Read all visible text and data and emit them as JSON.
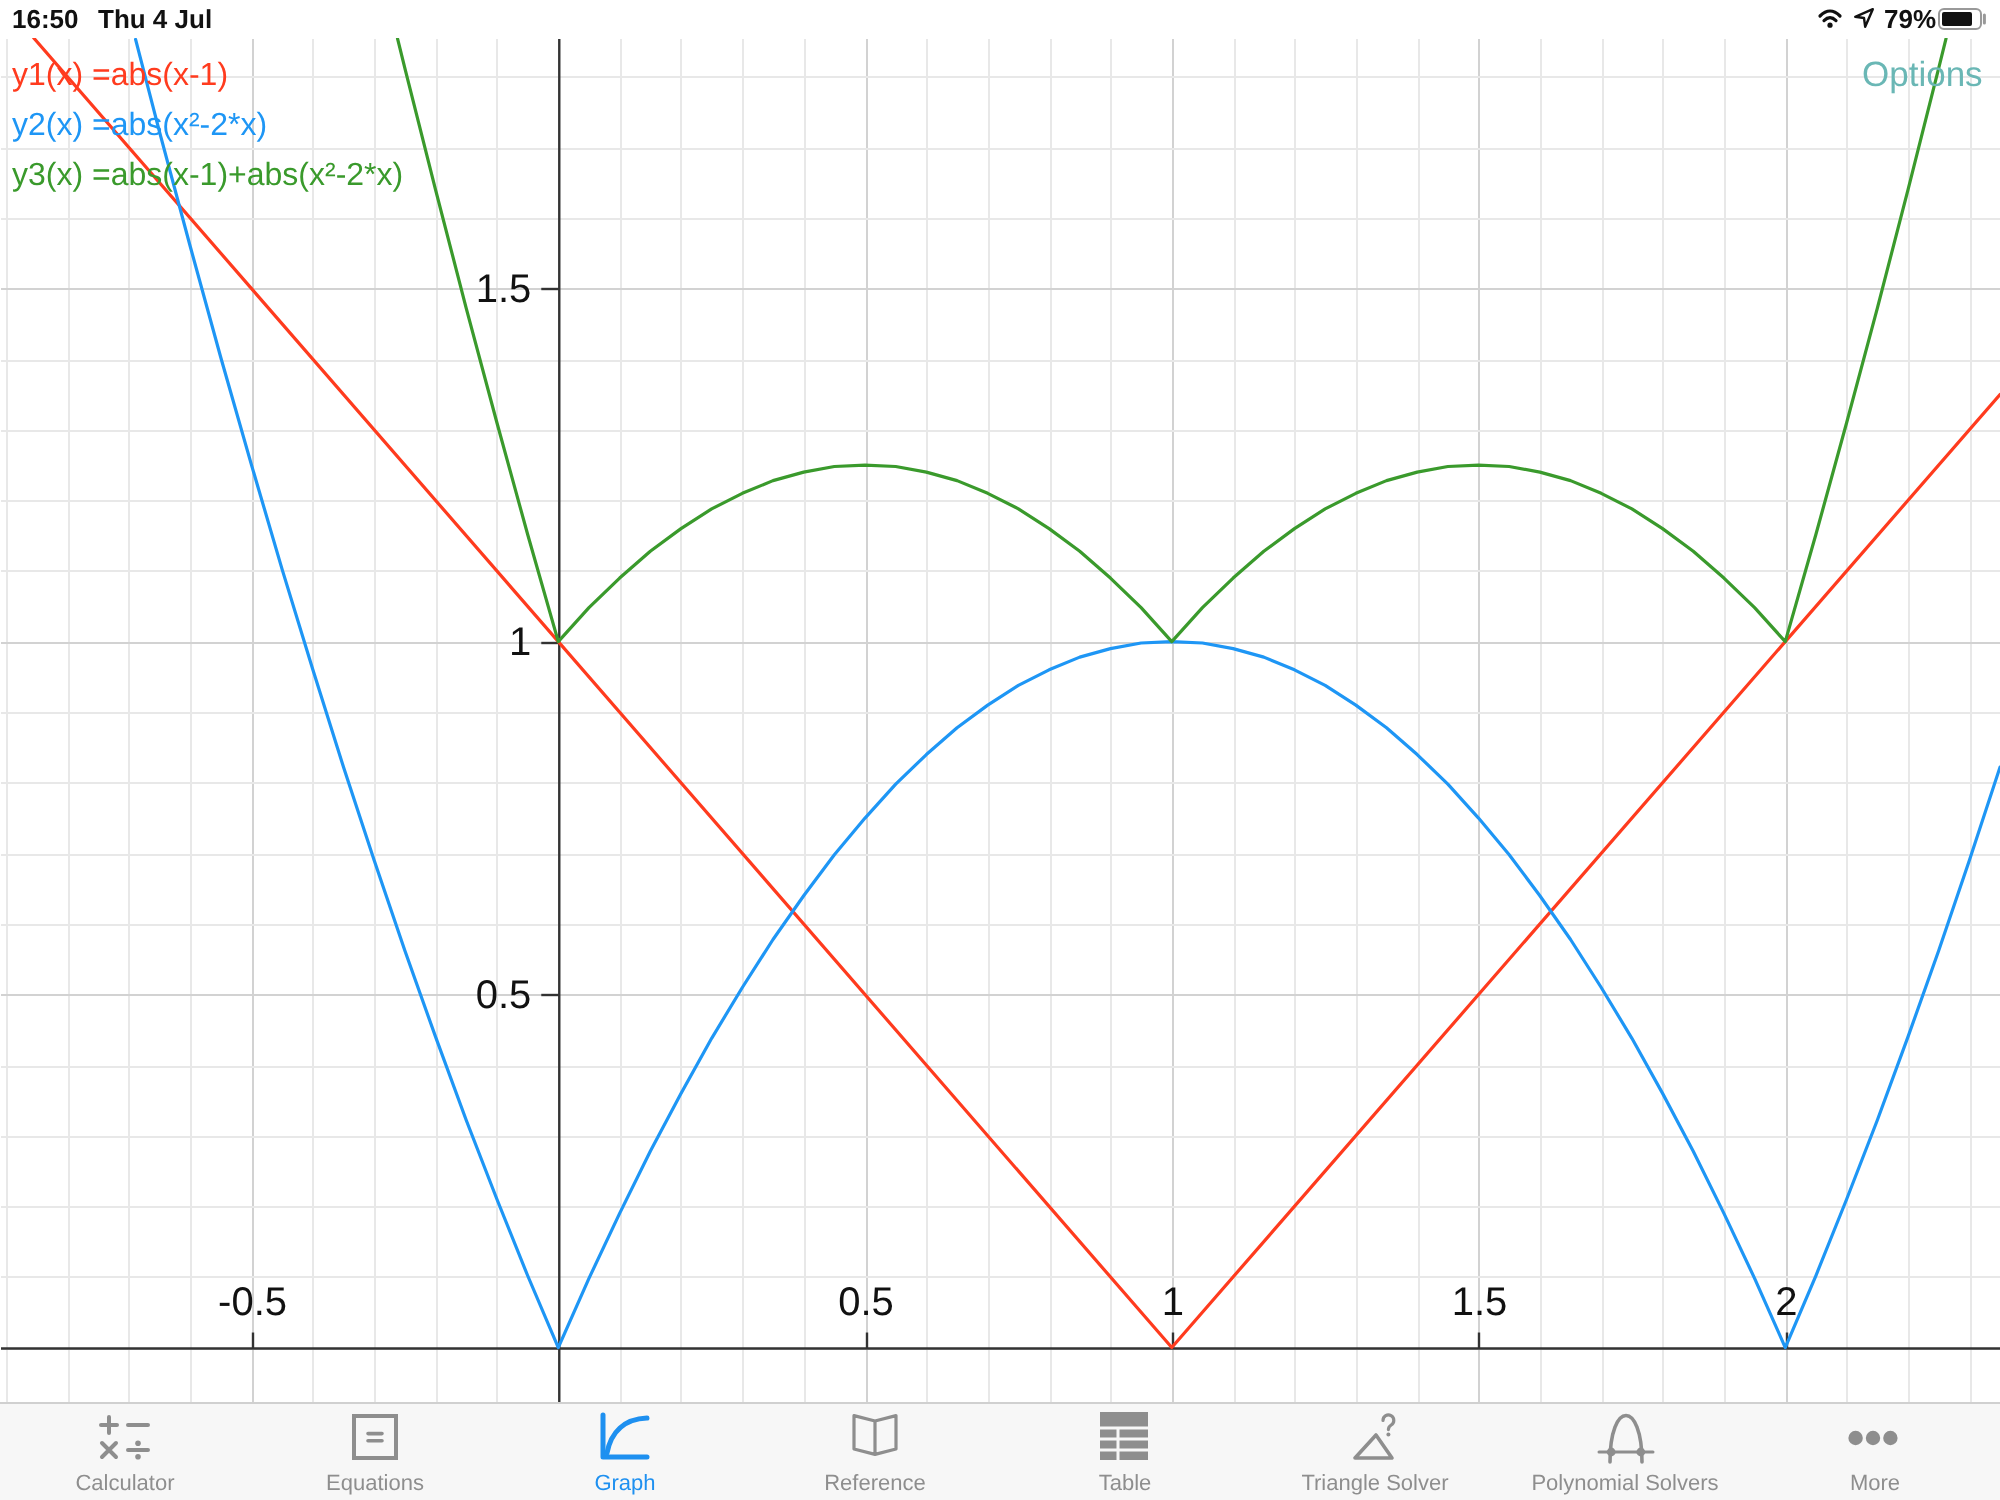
{
  "chart_data": {
    "type": "line",
    "series": [
      {
        "name": "y1(x) =abs(x-1)",
        "color": "#ff3b1e",
        "x": [
          -0.855,
          1,
          2.35
        ],
        "values": [
          1.855,
          0,
          1.35
        ]
      },
      {
        "name": "y2(x) =abs(x²-2*x)",
        "color": "#1e96f5",
        "x": [
          -0.689,
          -0.65,
          -0.6,
          -0.55,
          -0.5,
          -0.45,
          -0.4,
          -0.35,
          -0.3,
          -0.25,
          -0.2,
          -0.15,
          -0.1,
          -0.05,
          0,
          0.05,
          0.1,
          0.15,
          0.2,
          0.25,
          0.3,
          0.35,
          0.4,
          0.45,
          0.5,
          0.55,
          0.6,
          0.65,
          0.7,
          0.75,
          0.8,
          0.85,
          0.9,
          0.95,
          1,
          1.05,
          1.1,
          1.15,
          1.2,
          1.25,
          1.3,
          1.35,
          1.4,
          1.45,
          1.5,
          1.55,
          1.6,
          1.65,
          1.7,
          1.75,
          1.8,
          1.85,
          1.9,
          1.95,
          2,
          2.05,
          2.1,
          2.15,
          2.2,
          2.25,
          2.3,
          2.35
        ],
        "values": [
          1.853,
          1.722,
          1.56,
          1.402,
          1.25,
          1.102,
          0.96,
          0.822,
          0.69,
          0.562,
          0.44,
          0.322,
          0.21,
          0.102,
          0,
          0.098,
          0.19,
          0.278,
          0.36,
          0.438,
          0.51,
          0.578,
          0.64,
          0.698,
          0.75,
          0.798,
          0.84,
          0.878,
          0.91,
          0.938,
          0.96,
          0.978,
          0.99,
          0.998,
          1,
          0.998,
          0.99,
          0.978,
          0.96,
          0.938,
          0.91,
          0.878,
          0.84,
          0.798,
          0.75,
          0.698,
          0.64,
          0.578,
          0.51,
          0.438,
          0.36,
          0.278,
          0.19,
          0.098,
          0,
          0.102,
          0.21,
          0.322,
          0.44,
          0.562,
          0.69,
          0.822
        ]
      },
      {
        "name": "y3(x) =abs(x-1)+abs(x²-2*x)",
        "color": "#3a9a2c",
        "x": [
          -0.262,
          -0.25,
          -0.2,
          -0.15,
          -0.1,
          -0.05,
          0,
          0.05,
          0.1,
          0.15,
          0.2,
          0.25,
          0.3,
          0.35,
          0.4,
          0.45,
          0.5,
          0.55,
          0.6,
          0.65,
          0.7,
          0.75,
          0.8,
          0.85,
          0.9,
          0.95,
          1,
          1.05,
          1.1,
          1.15,
          1.2,
          1.25,
          1.3,
          1.35,
          1.4,
          1.45,
          1.5,
          1.55,
          1.6,
          1.65,
          1.7,
          1.75,
          1.8,
          1.85,
          1.9,
          1.95,
          2,
          2.05,
          2.1,
          2.15,
          2.2,
          2.25,
          2.262
        ],
        "values": [
          1.854,
          1.812,
          1.64,
          1.472,
          1.31,
          1.152,
          1,
          1.048,
          1.09,
          1.128,
          1.16,
          1.188,
          1.21,
          1.228,
          1.24,
          1.248,
          1.25,
          1.248,
          1.24,
          1.228,
          1.21,
          1.188,
          1.16,
          1.128,
          1.09,
          1.048,
          1,
          1.048,
          1.09,
          1.128,
          1.16,
          1.188,
          1.21,
          1.228,
          1.24,
          1.248,
          1.25,
          1.248,
          1.24,
          1.228,
          1.21,
          1.188,
          1.16,
          1.128,
          1.09,
          1.048,
          1,
          1.152,
          1.31,
          1.472,
          1.64,
          1.812,
          1.854
        ]
      }
    ],
    "xlim": [
      -0.91,
      2.35
    ],
    "ylim": [
      -0.08,
      1.855
    ],
    "xticks": [
      {
        "value": -0.9,
        "label": null
      },
      {
        "value": -0.8,
        "label": null
      },
      {
        "value": -0.7,
        "label": null
      },
      {
        "value": -0.6,
        "label": null
      },
      -0.5,
      {
        "value": -0.4,
        "label": null
      },
      {
        "value": -0.3,
        "label": null
      },
      {
        "value": -0.2,
        "label": null
      },
      {
        "value": -0.1,
        "label": null
      },
      {
        "value": 0,
        "label": null
      },
      {
        "value": 0.1,
        "label": null
      },
      {
        "value": 0.2,
        "label": null
      },
      {
        "value": 0.3,
        "label": null
      },
      {
        "value": 0.4,
        "label": null
      },
      0.5,
      {
        "value": 0.6,
        "label": null
      },
      {
        "value": 0.7,
        "label": null
      },
      {
        "value": 0.8,
        "label": null
      },
      {
        "value": 0.9,
        "label": null
      },
      1,
      {
        "value": 1.1,
        "label": null
      },
      {
        "value": 1.2,
        "label": null
      },
      {
        "value": 1.3,
        "label": null
      },
      {
        "value": 1.4,
        "label": null
      },
      1.5,
      {
        "value": 1.6,
        "label": null
      },
      {
        "value": 1.7,
        "label": null
      },
      {
        "value": 1.8,
        "label": null
      },
      {
        "value": 1.9,
        "label": null
      },
      2,
      {
        "value": 2.1,
        "label": null
      },
      {
        "value": 2.2,
        "label": null
      },
      {
        "value": 2.3,
        "label": null
      }
    ],
    "yticks": [
      {
        "value": 0,
        "label": null
      },
      {
        "value": 0.1,
        "label": null
      },
      {
        "value": 0.2,
        "label": null
      },
      {
        "value": 0.3,
        "label": null
      },
      {
        "value": 0.4,
        "label": null
      },
      0.5,
      {
        "value": 0.6,
        "label": null
      },
      {
        "value": 0.7,
        "label": null
      },
      {
        "value": 0.8,
        "label": null
      },
      {
        "value": 0.9,
        "label": null
      },
      1,
      {
        "value": 1.1,
        "label": null
      },
      {
        "value": 1.2,
        "label": null
      },
      {
        "value": 1.3,
        "label": null
      },
      {
        "value": 1.4,
        "label": null
      },
      1.5,
      {
        "value": 1.6,
        "label": null
      },
      {
        "value": 1.7,
        "label": null
      },
      {
        "value": 1.8,
        "label": null
      }
    ],
    "grid": true,
    "legend": "top left",
    "annotations": [
      "16:50",
      "Thu 4 Jul",
      "79%",
      "Options",
      "Calculator",
      "Equations",
      "Graph",
      "Reference",
      "Table",
      "Triangle Solver",
      "Polynomial Solvers",
      "More"
    ]
  }
}
